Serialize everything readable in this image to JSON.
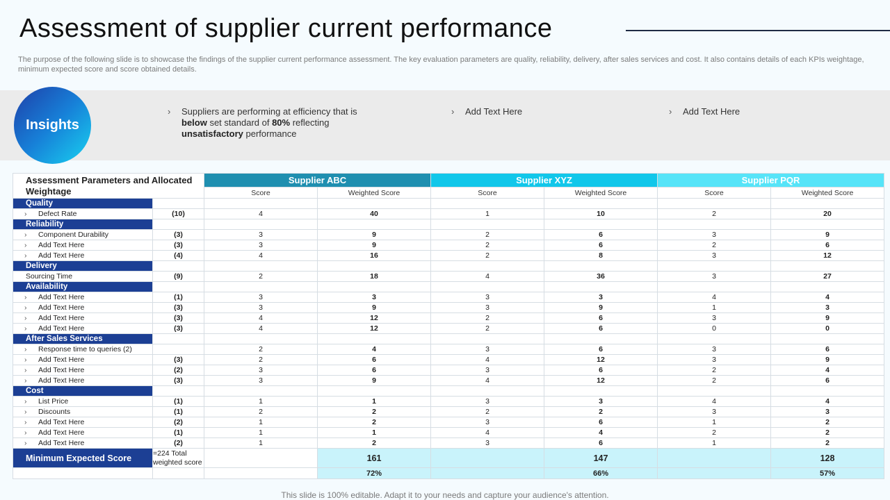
{
  "title": "Assessment of supplier current performance",
  "subtitle": "The purpose of the following slide is to showcase the findings of the supplier current performance assessment. The key evaluation parameters are quality, reliability, delivery, after sales services and cost. It also contains details of each KPIs weightage, minimum expected score and score obtained details.",
  "insights": {
    "label": "Insights",
    "item1_a": "Suppliers are performing at efficiency that is ",
    "item1_b": "below",
    "item1_c": " set standard of ",
    "item1_d": "80%",
    "item1_e": " reflecting ",
    "item1_f": "unsatisfactory",
    "item1_g": " performance",
    "item2": "Add Text Here",
    "item3": "Add Text Here",
    "chevron": "›"
  },
  "table": {
    "param_header": "Assessment Parameters and Allocated Weightage",
    "suppliers": [
      "Supplier ABC",
      "Supplier XYZ",
      "Supplier PQR"
    ],
    "score_label": "Score",
    "weighted_label": "Weighted Score",
    "colors": {
      "abc": "#1f8fb0",
      "xyz": "#11c7ea",
      "pqr": "#56e4f8",
      "category": "#1c3f94"
    },
    "sections": [
      {
        "name": "Quality",
        "rows": [
          {
            "label": "Defect Rate",
            "chev": true,
            "weight": "(10)",
            "vals": [
              "4",
              "40",
              "1",
              "10",
              "2",
              "20"
            ]
          }
        ]
      },
      {
        "name": "Reliability",
        "rows": [
          {
            "label": "Component Durability",
            "chev": true,
            "weight": "(3)",
            "vals": [
              "3",
              "9",
              "2",
              "6",
              "3",
              "9"
            ]
          },
          {
            "label": "Add Text Here",
            "chev": true,
            "weight": "(3)",
            "vals": [
              "3",
              "9",
              "2",
              "6",
              "2",
              "6"
            ]
          },
          {
            "label": "Add Text Here",
            "chev": true,
            "weight": "(4)",
            "vals": [
              "4",
              "16",
              "2",
              "8",
              "3",
              "12"
            ]
          }
        ]
      },
      {
        "name": "Delivery",
        "rows": [
          {
            "label": "Sourcing Time",
            "chev": false,
            "weight": "(9)",
            "vals": [
              "2",
              "18",
              "4",
              "36",
              "3",
              "27"
            ]
          }
        ]
      },
      {
        "name": "Availability",
        "rows": [
          {
            "label": "Add Text Here",
            "chev": true,
            "weight": "(1)",
            "vals": [
              "3",
              "3",
              "3",
              "3",
              "4",
              "4"
            ]
          },
          {
            "label": "Add Text Here",
            "chev": true,
            "weight": "(3)",
            "vals": [
              "3",
              "9",
              "3",
              "9",
              "1",
              "3"
            ]
          },
          {
            "label": "Add Text Here",
            "chev": true,
            "weight": "(3)",
            "vals": [
              "4",
              "12",
              "2",
              "6",
              "3",
              "9"
            ]
          },
          {
            "label": "Add Text Here",
            "chev": true,
            "weight": "(3)",
            "vals": [
              "4",
              "12",
              "2",
              "6",
              "0",
              "0"
            ]
          }
        ]
      },
      {
        "name": "After Sales Services",
        "rows": [
          {
            "label": "Response time to queries (2)",
            "chev": true,
            "weight": "",
            "vals": [
              "2",
              "4",
              "3",
              "6",
              "3",
              "6"
            ]
          },
          {
            "label": "Add Text Here",
            "chev": true,
            "weight": "(3)",
            "vals": [
              "2",
              "6",
              "4",
              "12",
              "3",
              "9"
            ]
          },
          {
            "label": "Add Text Here",
            "chev": true,
            "weight": "(2)",
            "vals": [
              "3",
              "6",
              "3",
              "6",
              "2",
              "4"
            ]
          },
          {
            "label": "Add Text Here",
            "chev": true,
            "weight": "(3)",
            "vals": [
              "3",
              "9",
              "4",
              "12",
              "2",
              "6"
            ]
          }
        ]
      },
      {
        "name": "Cost",
        "rows": [
          {
            "label": "List Price",
            "chev": true,
            "weight": "(1)",
            "vals": [
              "1",
              "1",
              "3",
              "3",
              "4",
              "4"
            ]
          },
          {
            "label": "Discounts",
            "chev": true,
            "weight": "(1)",
            "vals": [
              "2",
              "2",
              "2",
              "2",
              "3",
              "3"
            ]
          },
          {
            "label": "Add Text Here",
            "chev": true,
            "weight": "(2)",
            "vals": [
              "1",
              "2",
              "3",
              "6",
              "1",
              "2"
            ]
          },
          {
            "label": "Add Text Here",
            "chev": true,
            "weight": "(1)",
            "vals": [
              "1",
              "1",
              "4",
              "4",
              "2",
              "2"
            ]
          },
          {
            "label": "Add Text Here",
            "chev": true,
            "weight": "(2)",
            "vals": [
              "1",
              "2",
              "3",
              "6",
              "1",
              "2"
            ]
          }
        ]
      }
    ],
    "minimum": {
      "label": "Minimum Expected Score",
      "note": "=224 Total weighted score",
      "totals": [
        "161",
        "147",
        "128"
      ],
      "percents": [
        "72%",
        "66%",
        "57%"
      ]
    }
  },
  "footer": "This slide is 100% editable. Adapt it to your needs and capture your audience's attention."
}
